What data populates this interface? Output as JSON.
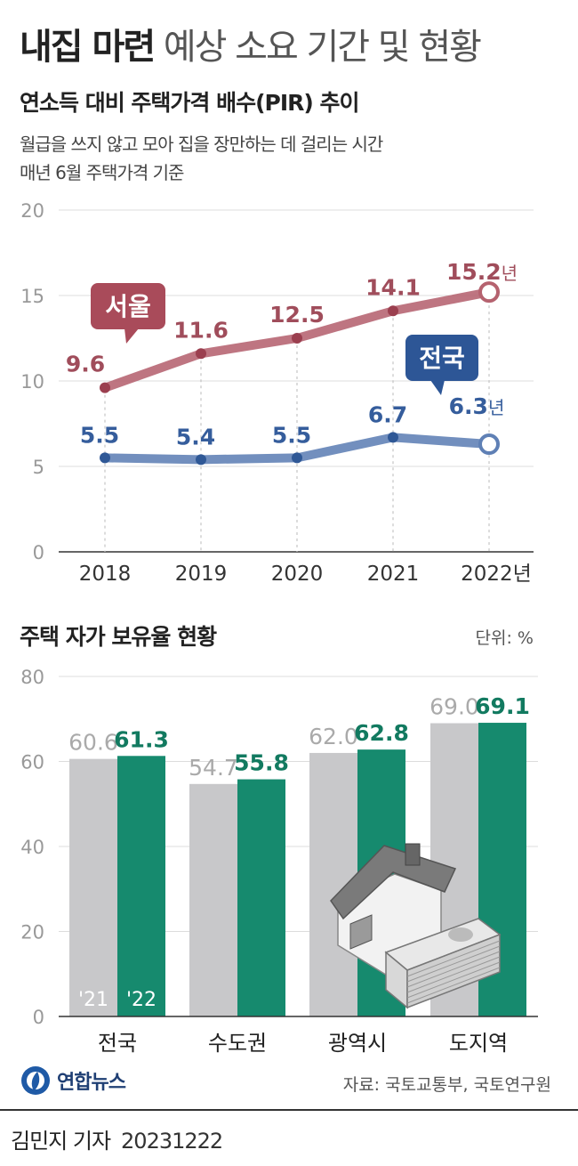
{
  "header": {
    "title_bold": "내집 마련",
    "title_rest": " 예상 소요 기간 및 현황"
  },
  "chart1": {
    "title": "연소득 대비 주택가격 배수(PIR) 추이",
    "subtitle_1": "월급을 쓰지 않고 모아 집을 장만하는 데 걸리는 시간",
    "subtitle_2": "매년 6월 주택가격 기준"
  },
  "chart2": {
    "title": "주택 자가 보유율 현황",
    "unit": "단위: %"
  },
  "footer": {
    "source": "자료: 국토교통부, 국토연구원",
    "logo_text": "연합뉴스",
    "byline": "김민지 기자",
    "date": "20231222"
  },
  "colors": {
    "seoul": "#b5626f",
    "national": "#5f80b5",
    "bar_2021": "#c8c8ca",
    "bar_2022": "#168a6e"
  },
  "chart_data": [
    {
      "type": "line",
      "x": [
        "2018",
        "2019",
        "2020",
        "2021",
        "2022년"
      ],
      "ylim": [
        0,
        20
      ],
      "yticks": [
        0,
        5,
        10,
        15,
        20
      ],
      "grid": true,
      "series": [
        {
          "name": "서울",
          "values": [
            9.6,
            11.6,
            12.5,
            14.1,
            15.2
          ],
          "labels": [
            "9.6",
            "11.6",
            "12.5",
            "14.1",
            "15.2년"
          ],
          "color": "#b5626f"
        },
        {
          "name": "전국",
          "values": [
            5.5,
            5.4,
            5.5,
            6.7,
            6.3
          ],
          "labels": [
            "5.5",
            "5.4",
            "5.5",
            "6.7",
            "6.3년"
          ],
          "color": "#5f80b5"
        }
      ]
    },
    {
      "type": "bar",
      "categories": [
        "전국",
        "수도권",
        "광역시",
        "도지역"
      ],
      "ylim": [
        0,
        80
      ],
      "yticks": [
        0,
        20,
        40,
        60,
        80
      ],
      "grid": true,
      "series": [
        {
          "name": "'21",
          "values": [
            60.6,
            54.7,
            62.0,
            69.0
          ],
          "labels": [
            "60.6",
            "54.7",
            "62.0",
            "69.0"
          ],
          "color": "#c8c8ca"
        },
        {
          "name": "'22",
          "values": [
            61.3,
            55.8,
            62.8,
            69.1
          ],
          "labels": [
            "61.3",
            "55.8",
            "62.8",
            "69.1"
          ],
          "color": "#168a6e"
        }
      ]
    }
  ]
}
